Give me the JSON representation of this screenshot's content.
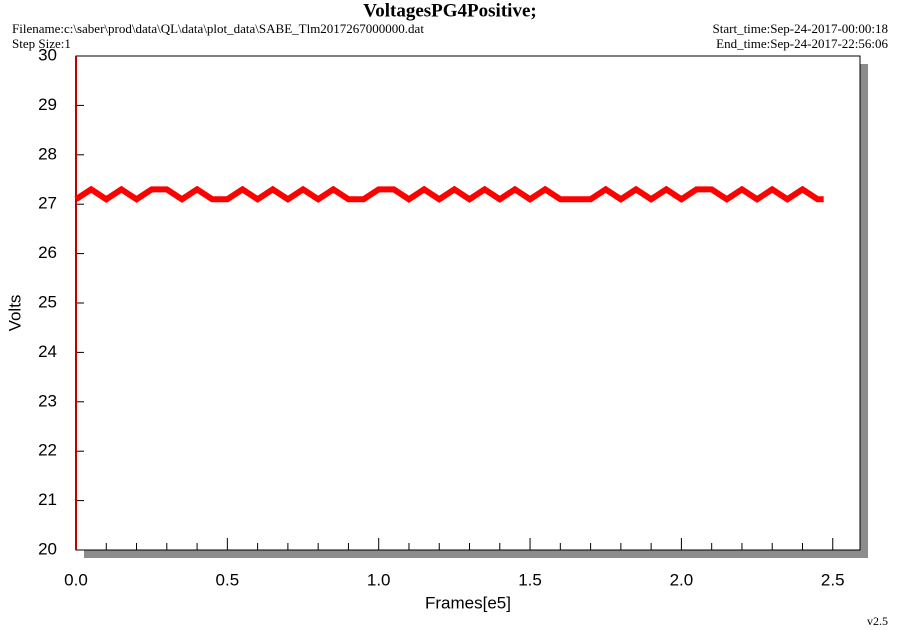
{
  "chart_data": {
    "type": "line",
    "title": "VoltagesPG4Positive;",
    "filename": "Filename:c:\\saber\\prod\\data\\QL\\data\\plot_data\\SABE_Tlm2017267000000.dat",
    "step_size": "Step Size:1",
    "start_time": "Start_time:Sep-24-2017-00:00:18",
    "end_time": "End_time:Sep-24-2017-22:56:06",
    "version": "v2.5",
    "x_label": "Frames[e5]",
    "y_label": "Volts",
    "xlim": [
      0,
      2.59
    ],
    "ylim": [
      20,
      30
    ],
    "xticks": [
      {
        "value": 0,
        "label": "0.0"
      },
      0.5,
      {
        "value": 1,
        "label": "1.0"
      },
      1.5,
      {
        "value": 2,
        "label": "2.0"
      },
      2.5
    ],
    "xminorticks": [
      0.1,
      0.2,
      0.3,
      0.4,
      0.6,
      0.7,
      0.8,
      0.9,
      1.1,
      1.2,
      1.3,
      1.4,
      1.6,
      1.7,
      1.8,
      1.9,
      2.1,
      2.2,
      2.3,
      2.4
    ],
    "yticks": [
      20,
      21,
      22,
      23,
      24,
      25,
      26,
      27,
      28,
      29,
      30
    ],
    "series": [
      {
        "name": "PG4Positive",
        "color": "#ff0000",
        "x": [
          0,
          0.05,
          0.1,
          0.15,
          0.2,
          0.25,
          0.3,
          0.35,
          0.4,
          0.45,
          0.5,
          0.55,
          0.6,
          0.65,
          0.7,
          0.75,
          0.8,
          0.85,
          0.9,
          0.95,
          1.0,
          1.05,
          1.1,
          1.15,
          1.2,
          1.25,
          1.3,
          1.35,
          1.4,
          1.45,
          1.5,
          1.55,
          1.6,
          1.65,
          1.7,
          1.75,
          1.8,
          1.85,
          1.9,
          1.95,
          2.0,
          2.05,
          2.1,
          2.15,
          2.2,
          2.25,
          2.3,
          2.35,
          2.4,
          2.45,
          2.47
        ],
        "values": [
          27.1,
          27.3,
          27.1,
          27.3,
          27.1,
          27.3,
          27.3,
          27.1,
          27.3,
          27.1,
          27.1,
          27.3,
          27.1,
          27.3,
          27.1,
          27.3,
          27.1,
          27.3,
          27.1,
          27.1,
          27.3,
          27.3,
          27.1,
          27.3,
          27.1,
          27.3,
          27.1,
          27.3,
          27.1,
          27.3,
          27.1,
          27.3,
          27.1,
          27.1,
          27.1,
          27.3,
          27.1,
          27.3,
          27.1,
          27.3,
          27.1,
          27.3,
          27.3,
          27.1,
          27.3,
          27.1,
          27.3,
          27.1,
          27.3,
          27.1,
          27.1
        ]
      }
    ]
  }
}
